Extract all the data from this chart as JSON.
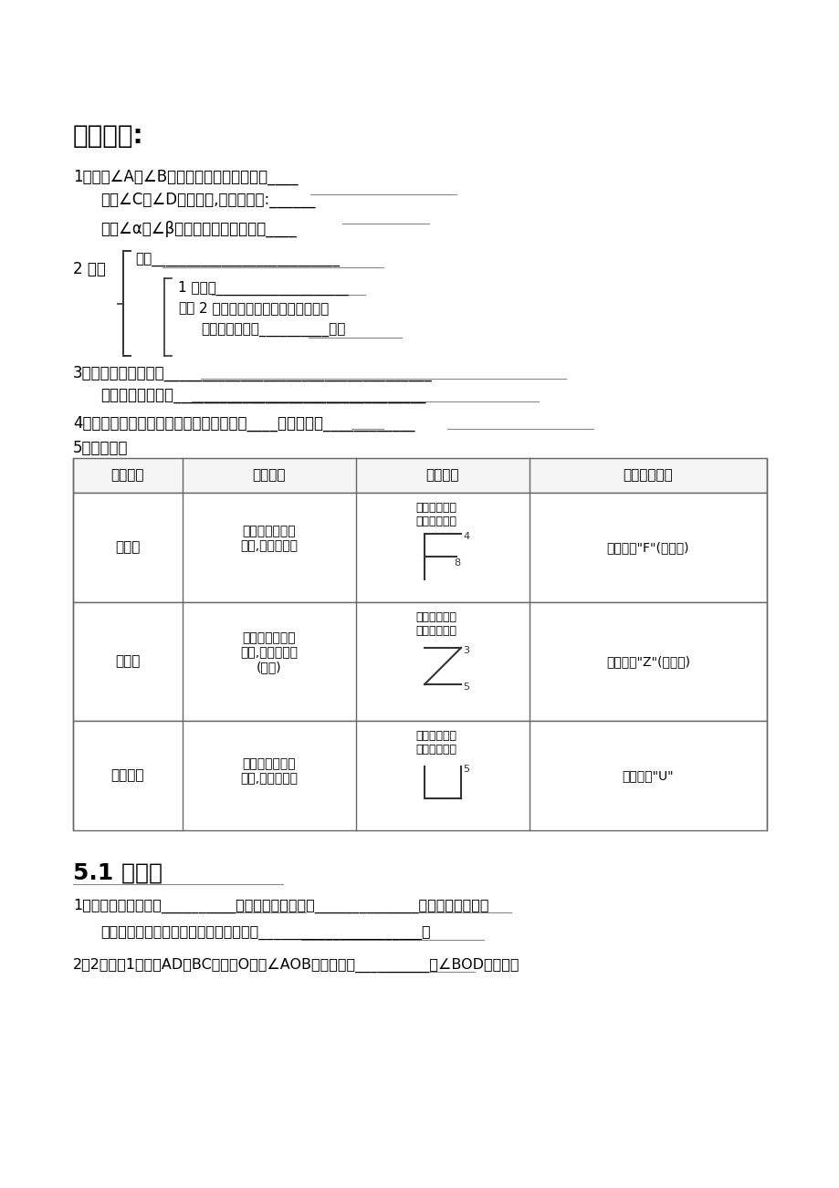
{
  "title": "知识回顾:",
  "section2_title": "5.1 相交线",
  "bg_color": "#ffffff",
  "text_color": "#000000",
  "line_color": "#555555",
  "content": {
    "q1_line1": "1、如果∠A与∠B是对顶角，则其关系是：____",
    "q1_line2": "   如果∠C与∠D是邻补角,则其关系是:______",
    "q1_line3": "   如果∠α与∠β互为余角，则其关系是____",
    "q2_label": "2 垂直",
    "q2_dingyi": "定义___________________________",
    "q2_xingzhi1": "1 过一点___________________",
    "q2_xingzhi2": "2 连接直线外一点与直线上各点的",
    "q2_xingzhi3": "   的所有线段中，__________最短",
    "q3_line1": "3、点到直线距离是：___________________________________",
    "q3_line2": "   两点间的距离是：_________________________________",
    "q4": "4、在同一平面内，两条直线的位置关系有____种，它们是____________",
    "q5": "5、三线八角",
    "table_headers": [
      "角的名称",
      "位置特征",
      "基本图形",
      "图形结构特征"
    ],
    "row1": [
      "同位角",
      "在两条被截直线\n同旁,在截线同侧",
      "去掉多余的线\n显现基本图形\n[F图]",
      "形如字母\"F\"(或倒置)"
    ],
    "row2": [
      "内错角",
      "在两条被截直线\n之内,在截线两侧\n(交错)",
      "去掉多余的线\n显现基本图形\n[Z图]",
      "形如字母\"Z\"(或反置)"
    ],
    "row3": [
      "同旁内角",
      "在两条被截直线\n之内,在截线同侧",
      "去掉多余的线\n显现基本图形\n[U图]",
      "形如字母\"U\""
    ],
    "s2_q1": "1、邻补角的平分线成__________角，对顶角的平分线______________，一条直线与端点",
    "s2_q1b": "   在这条直线上的一条射线组成的两个角是______________________。",
    "s2_q2": "2、2、如图1，直线AD、BC相交于O，则∠AOB的对顶角是__________，∠BOD的邻补角"
  }
}
